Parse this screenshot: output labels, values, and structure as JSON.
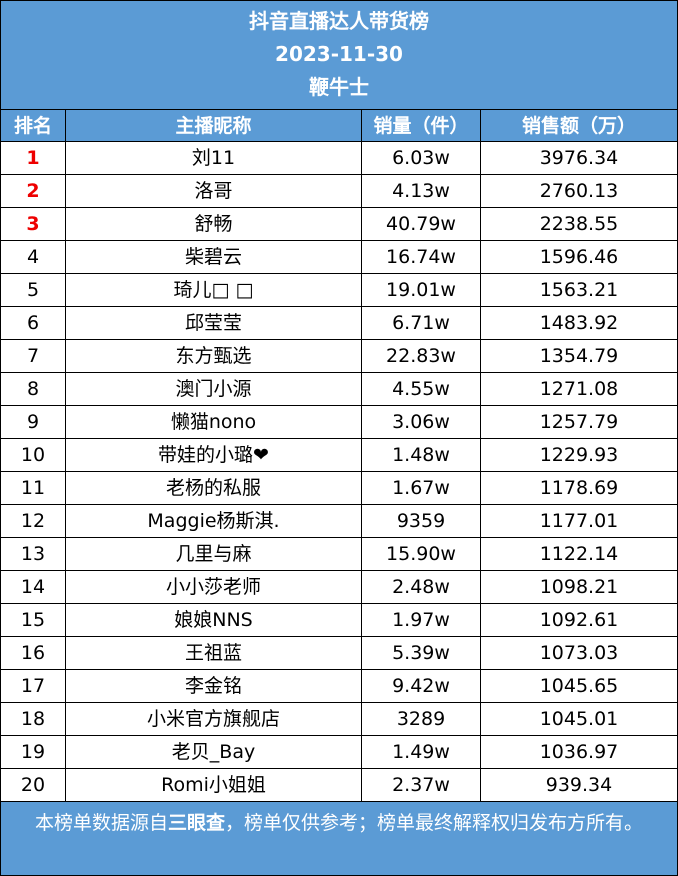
{
  "header": {
    "title": "抖音直播达人带货榜",
    "date": "2023-11-30",
    "subtitle": "鞭牛士"
  },
  "table": {
    "columns": [
      "排名",
      "主播昵称",
      "销量（件）",
      "销售额（万）"
    ],
    "rows": [
      [
        "1",
        "刘11",
        "6.03w",
        "3976.34"
      ],
      [
        "2",
        "洛哥",
        "4.13w",
        "2760.13"
      ],
      [
        "3",
        "舒畅",
        "40.79w",
        "2238.55"
      ],
      [
        "4",
        "柴碧云",
        "16.74w",
        "1596.46"
      ],
      [
        "5",
        "琦儿□ □",
        "19.01w",
        "1563.21"
      ],
      [
        "6",
        "邱莹莹",
        "6.71w",
        "1483.92"
      ],
      [
        "7",
        "东方甄选",
        "22.83w",
        "1354.79"
      ],
      [
        "8",
        "澳门小源",
        "4.55w",
        "1271.08"
      ],
      [
        "9",
        "懒猫nono",
        "3.06w",
        "1257.79"
      ],
      [
        "10",
        "带娃的小璐❤",
        "1.48w",
        "1229.93"
      ],
      [
        "11",
        "老杨的私服",
        "1.67w",
        "1178.69"
      ],
      [
        "12",
        "Maggie杨斯淇.",
        "9359",
        "1177.01"
      ],
      [
        "13",
        "几里与麻",
        "15.90w",
        "1122.14"
      ],
      [
        "14",
        "小小莎老师",
        "2.48w",
        "1098.21"
      ],
      [
        "15",
        "娘娘NNS",
        "1.97w",
        "1092.61"
      ],
      [
        "16",
        "王祖蓝",
        "5.39w",
        "1073.03"
      ],
      [
        "17",
        "李金铭",
        "9.42w",
        "1045.65"
      ],
      [
        "18",
        "小米官方旗舰店",
        "3289",
        "1045.01"
      ],
      [
        "19",
        "老贝_Bay",
        "1.49w",
        "1036.97"
      ],
      [
        "20",
        "Romi小姐姐",
        "2.37w",
        "939.34"
      ]
    ]
  },
  "footer": {
    "before": "本榜单数据源自",
    "bold": "三眼查",
    "after": "，榜单仅供参考；榜单最终解释权归发布方所有。"
  }
}
